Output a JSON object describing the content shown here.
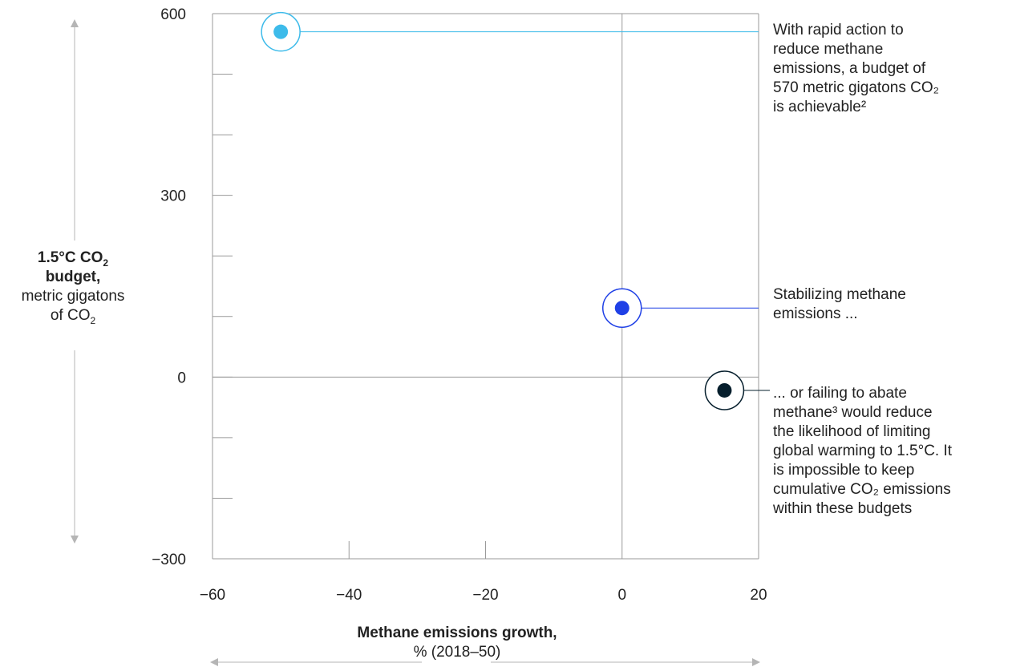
{
  "chart_data": {
    "type": "scatter",
    "title": "",
    "xlabel": {
      "bold": "Methane emissions growth,",
      "normal": "% (2018–50)"
    },
    "ylabel": {
      "bold1": "1.5°C CO",
      "bold_sub": "2",
      "bold2": "budget,",
      "normal1": "metric gigatons",
      "normal2": "of CO",
      "normal_sub": "2"
    },
    "xlim": [
      -60,
      20
    ],
    "ylim": [
      -300,
      600
    ],
    "x_ticks": [
      "−60",
      "−40",
      "−20",
      "0",
      "20"
    ],
    "y_ticks": [
      "600",
      "300",
      "0",
      "−300"
    ],
    "grid": false,
    "points": [
      {
        "x": -50,
        "y": 570,
        "color": "#3dbbea",
        "ring": "#3dbbea"
      },
      {
        "x": 0,
        "y": 114,
        "color": "#1f40e6",
        "ring": "#1f40e6"
      },
      {
        "x": 15,
        "y": -22,
        "color": "#061f2d",
        "ring": "#061f2d"
      }
    ],
    "annotations": [
      {
        "lines": [
          "With rapid action to",
          "reduce methane",
          "emissions, a budget of",
          "570 metric gigatons CO₂",
          "is achievable²"
        ]
      },
      {
        "lines": [
          "Stabilizing methane",
          "emissions ..."
        ]
      },
      {
        "lines": [
          "... or failing to abate",
          "methane³ would reduce",
          "the likelihood of limiting",
          "global warming to 1.5°C. It",
          "is impossible to keep",
          "cumulative CO₂ emissions",
          "within these budgets"
        ]
      }
    ]
  }
}
